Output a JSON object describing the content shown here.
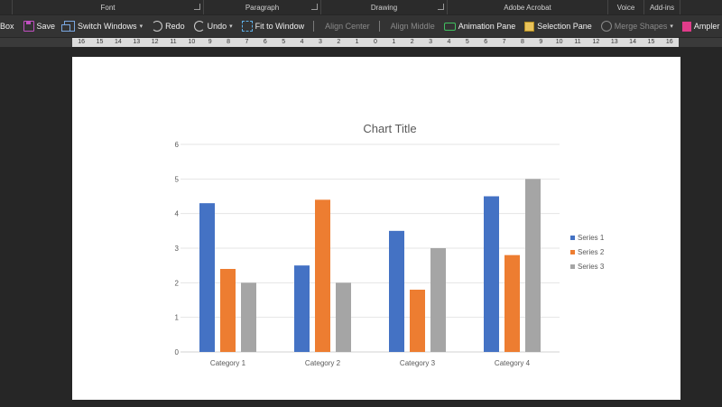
{
  "ribbon": {
    "groups": [
      {
        "label": "Font",
        "launcher": true
      },
      {
        "label": "Paragraph",
        "launcher": true
      },
      {
        "label": "Drawing",
        "launcher": true
      },
      {
        "label": "Adobe Acrobat",
        "launcher": false
      },
      {
        "label": "Voice",
        "launcher": false
      },
      {
        "label": "Add-ins",
        "launcher": false
      }
    ]
  },
  "toolbar": {
    "textbox_label": "Box",
    "save_label": "Save",
    "switch_windows_label": "Switch Windows",
    "redo_label": "Redo",
    "undo_label": "Undo",
    "fit_label": "Fit to Window",
    "align_center_label": "Align Center",
    "align_middle_label": "Align Middle",
    "animation_pane_label": "Animation Pane",
    "selection_pane_label": "Selection Pane",
    "merge_shapes_label": "Merge Shapes",
    "ampler_label": "Ampler Cha"
  },
  "ruler": {
    "labels": [
      "16",
      "15",
      "14",
      "13",
      "12",
      "11",
      "10",
      "9",
      "8",
      "7",
      "6",
      "5",
      "4",
      "3",
      "2",
      "1",
      "0",
      "1",
      "2",
      "3",
      "4",
      "5",
      "6",
      "7",
      "8",
      "9",
      "10",
      "11",
      "12",
      "13",
      "14",
      "15",
      "16"
    ]
  },
  "chart_data": {
    "type": "bar",
    "title": "Chart Title",
    "categories": [
      "Category 1",
      "Category 2",
      "Category 3",
      "Category 4"
    ],
    "series": [
      {
        "name": "Series 1",
        "values": [
          4.3,
          2.5,
          3.5,
          4.5
        ],
        "color": "#4472C4"
      },
      {
        "name": "Series 2",
        "values": [
          2.4,
          4.4,
          1.8,
          2.8
        ],
        "color": "#ED7D31"
      },
      {
        "name": "Series 3",
        "values": [
          2,
          2,
          3,
          5
        ],
        "color": "#A5A5A5"
      }
    ],
    "ylim": [
      0,
      6
    ],
    "yticks": [
      "0",
      "1",
      "2",
      "3",
      "4",
      "5",
      "6"
    ],
    "grid": true,
    "legend": "right"
  }
}
